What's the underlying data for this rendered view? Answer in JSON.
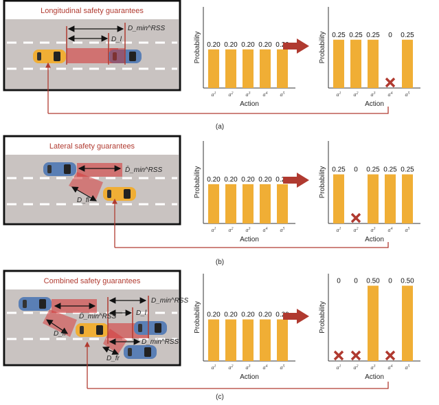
{
  "panels": [
    {
      "title": "Longitudinal safety guarantees",
      "caption": "(a)",
      "dims": [
        "D_min^RSS",
        "D_l"
      ]
    },
    {
      "title": "Lateral safety guarantees",
      "caption": "(b)",
      "dims": [
        "D̄_min^RSS",
        "D_fl"
      ]
    },
    {
      "title": "Combined safety guarantees",
      "caption": "(c)",
      "dims": [
        "D_min^RSS",
        "D_l",
        "D̄_min^RSS",
        "D_fl",
        "D_min^RSS",
        "D_fr"
      ]
    }
  ],
  "colors": {
    "bar": "#f0ae35",
    "accent": "#b03a30",
    "road": "#c9c3c1",
    "blue_car": "#5a7fb5",
    "yellow_car": "#f0ae35"
  },
  "chart_data": [
    {
      "type": "bar",
      "panel": "a",
      "side": "before",
      "categories": [
        "a1",
        "a2",
        "a3",
        "a4",
        "a5"
      ],
      "values": [
        0.2,
        0.2,
        0.2,
        0.2,
        0.2
      ],
      "labels": [
        "0.20",
        "0.20",
        "0.20",
        "0.20",
        "0.20"
      ],
      "xlabel": "Action",
      "ylabel": "Probability",
      "ylim": [
        0,
        0.42
      ],
      "excluded": []
    },
    {
      "type": "bar",
      "panel": "a",
      "side": "after",
      "categories": [
        "a1",
        "a2",
        "a3",
        "a4",
        "a5"
      ],
      "values": [
        0.25,
        0.25,
        0.25,
        0,
        0.25
      ],
      "labels": [
        "0.25",
        "0.25",
        "0.25",
        "0",
        "0.25"
      ],
      "xlabel": "Action",
      "ylabel": "Probability",
      "ylim": [
        0,
        0.42
      ],
      "excluded": [
        4
      ]
    },
    {
      "type": "bar",
      "panel": "b",
      "side": "before",
      "categories": [
        "a1",
        "a2",
        "a3",
        "a4",
        "a5"
      ],
      "values": [
        0.2,
        0.2,
        0.2,
        0.2,
        0.2
      ],
      "labels": [
        "0.20",
        "0.20",
        "0.20",
        "0.20",
        "0.20"
      ],
      "xlabel": "Action",
      "ylabel": "Probability",
      "ylim": [
        0,
        0.42
      ],
      "excluded": []
    },
    {
      "type": "bar",
      "panel": "b",
      "side": "after",
      "categories": [
        "a1",
        "a2",
        "a3",
        "a4",
        "a5"
      ],
      "values": [
        0.25,
        0,
        0.25,
        0.25,
        0.25
      ],
      "labels": [
        "0.25",
        "0",
        "0.25",
        "0.25",
        "0.25"
      ],
      "xlabel": "Action",
      "ylabel": "Probability",
      "ylim": [
        0,
        0.42
      ],
      "excluded": [
        2
      ]
    },
    {
      "type": "bar",
      "panel": "c",
      "side": "before",
      "categories": [
        "a1",
        "a2",
        "a3",
        "a4",
        "a5"
      ],
      "values": [
        0.2,
        0.2,
        0.2,
        0.2,
        0.2
      ],
      "labels": [
        "0.20",
        "0.20",
        "0.20",
        "0.20",
        "0.20"
      ],
      "xlabel": "Action",
      "ylabel": "Probability",
      "ylim": [
        0,
        0.42
      ],
      "excluded": []
    },
    {
      "type": "bar",
      "panel": "c",
      "side": "after",
      "categories": [
        "a1",
        "a2",
        "a3",
        "a4",
        "a5"
      ],
      "values": [
        0,
        0,
        0.5,
        0,
        0.5
      ],
      "labels": [
        "0",
        "0",
        "0.50",
        "0",
        "0.50"
      ],
      "xlabel": "Action",
      "ylabel": "Probability",
      "ylim": [
        0,
        0.58
      ],
      "excluded": [
        1,
        2,
        4
      ]
    }
  ]
}
